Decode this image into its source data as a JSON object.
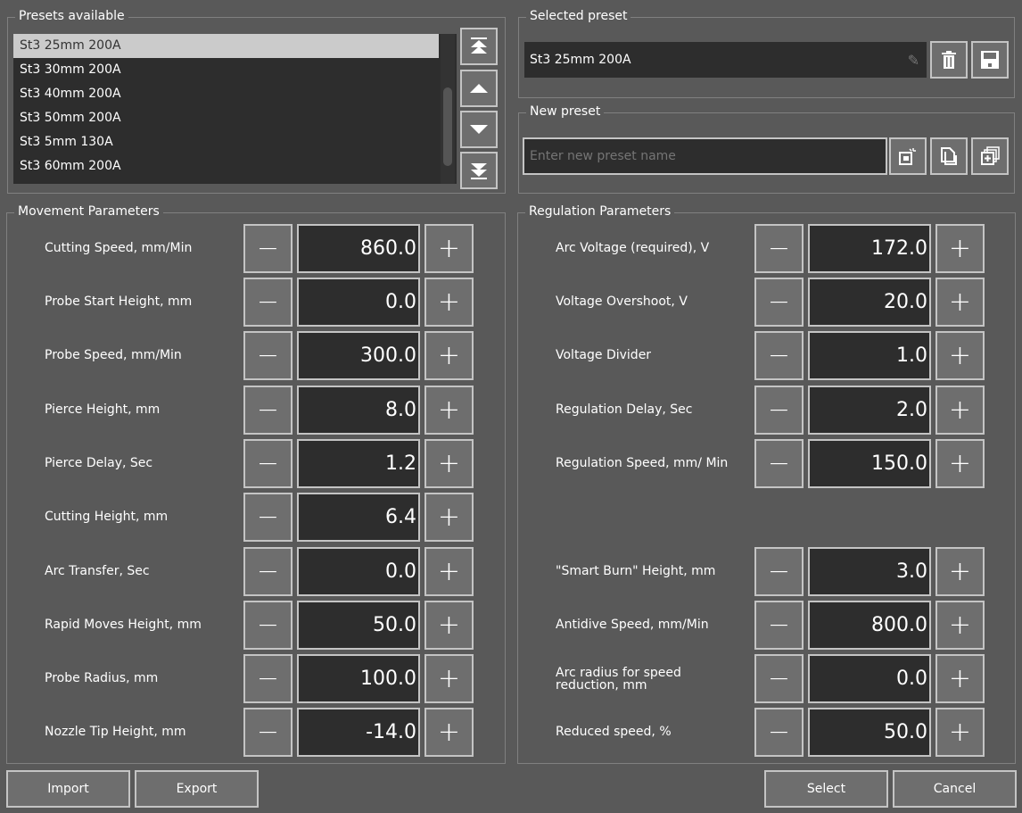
{
  "presets": {
    "title": "Presets available",
    "items": [
      "St3 25mm 200A",
      "St3 30mm 200A",
      "St3 40mm 200A",
      "St3 50mm 200A",
      "St3 5mm 130A",
      "St3 60mm 200A"
    ],
    "selected_index": 0
  },
  "selected": {
    "title": "Selected preset",
    "value": "St3 25mm 200A"
  },
  "new_preset": {
    "title": "New preset",
    "placeholder": "Enter new preset name"
  },
  "movement": {
    "title": "Movement Parameters",
    "rows": [
      {
        "label": "Cutting Speed, mm/Min",
        "value": "860.0"
      },
      {
        "label": "Probe Start Height, mm",
        "value": "0.0"
      },
      {
        "label": "Probe Speed, mm/Min",
        "value": "300.0"
      },
      {
        "label": "Pierce Height, mm",
        "value": "8.0"
      },
      {
        "label": "Pierce Delay, Sec",
        "value": "1.2"
      },
      {
        "label": "Cutting Height, mm",
        "value": "6.4"
      },
      {
        "label": "Arc Transfer, Sec",
        "value": "0.0"
      },
      {
        "label": "Rapid Moves Height, mm",
        "value": "50.0"
      },
      {
        "label": "Probe Radius, mm",
        "value": "100.0"
      },
      {
        "label": "Nozzle Tip Height, mm",
        "value": "-14.0"
      }
    ]
  },
  "regulation": {
    "title": "Regulation Parameters",
    "rows": [
      {
        "label": "Arc Voltage (required), V",
        "value": "172.0"
      },
      {
        "label": "Voltage Overshoot, V",
        "value": "20.0"
      },
      {
        "label": "Voltage Divider",
        "value": "1.0"
      },
      {
        "label": "Regulation Delay, Sec",
        "value": "2.0"
      },
      {
        "label": "Regulation Speed, mm/ Min",
        "value": "150.0"
      },
      {
        "label": "\"Smart Burn\" Height, mm",
        "value": "3.0"
      },
      {
        "label": "Antidive Speed, mm/Min",
        "value": "800.0"
      },
      {
        "label": "Arc radius for speed reduction, mm",
        "value": "0.0"
      },
      {
        "label": "Reduced speed, %",
        "value": "50.0"
      }
    ]
  },
  "buttons": {
    "import": "Import",
    "export": "Export",
    "select": "Select",
    "cancel": "Cancel",
    "minus": "−",
    "plus": "+"
  }
}
